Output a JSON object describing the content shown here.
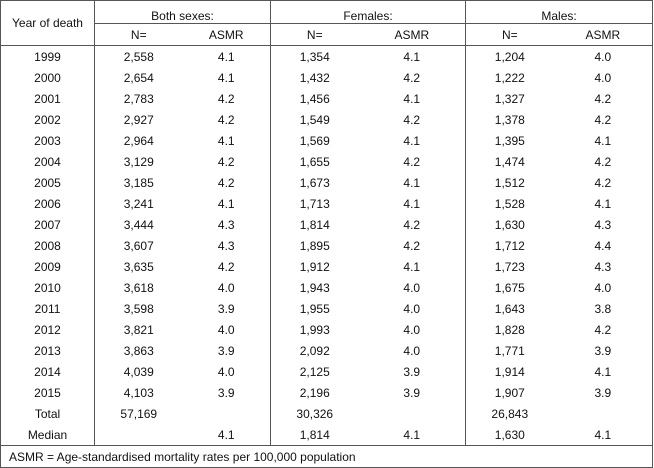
{
  "table": {
    "header": {
      "year_col": "Year of death",
      "groups": [
        "Both sexes:",
        "Females:",
        "Males:"
      ],
      "n_label": "N=",
      "asmr_label": "ASMR"
    },
    "rows": [
      {
        "year": "1999",
        "both_n": "2,558",
        "both_asmr": "4.1",
        "fem_n": "1,354",
        "fem_asmr": "4.1",
        "male_n": "1,204",
        "male_asmr": "4.0"
      },
      {
        "year": "2000",
        "both_n": "2,654",
        "both_asmr": "4.1",
        "fem_n": "1,432",
        "fem_asmr": "4.2",
        "male_n": "1,222",
        "male_asmr": "4.0"
      },
      {
        "year": "2001",
        "both_n": "2,783",
        "both_asmr": "4.2",
        "fem_n": "1,456",
        "fem_asmr": "4.1",
        "male_n": "1,327",
        "male_asmr": "4.2"
      },
      {
        "year": "2002",
        "both_n": "2,927",
        "both_asmr": "4.2",
        "fem_n": "1,549",
        "fem_asmr": "4.2",
        "male_n": "1,378",
        "male_asmr": "4.2"
      },
      {
        "year": "2003",
        "both_n": "2,964",
        "both_asmr": "4.1",
        "fem_n": "1,569",
        "fem_asmr": "4.1",
        "male_n": "1,395",
        "male_asmr": "4.1"
      },
      {
        "year": "2004",
        "both_n": "3,129",
        "both_asmr": "4.2",
        "fem_n": "1,655",
        "fem_asmr": "4.2",
        "male_n": "1,474",
        "male_asmr": "4.2"
      },
      {
        "year": "2005",
        "both_n": "3,185",
        "both_asmr": "4.2",
        "fem_n": "1,673",
        "fem_asmr": "4.1",
        "male_n": "1,512",
        "male_asmr": "4.2"
      },
      {
        "year": "2006",
        "both_n": "3,241",
        "both_asmr": "4.1",
        "fem_n": "1,713",
        "fem_asmr": "4.1",
        "male_n": "1,528",
        "male_asmr": "4.1"
      },
      {
        "year": "2007",
        "both_n": "3,444",
        "both_asmr": "4.3",
        "fem_n": "1,814",
        "fem_asmr": "4.2",
        "male_n": "1,630",
        "male_asmr": "4.3"
      },
      {
        "year": "2008",
        "both_n": "3,607",
        "both_asmr": "4.3",
        "fem_n": "1,895",
        "fem_asmr": "4.2",
        "male_n": "1,712",
        "male_asmr": "4.4"
      },
      {
        "year": "2009",
        "both_n": "3,635",
        "both_asmr": "4.2",
        "fem_n": "1,912",
        "fem_asmr": "4.1",
        "male_n": "1,723",
        "male_asmr": "4.3"
      },
      {
        "year": "2010",
        "both_n": "3,618",
        "both_asmr": "4.0",
        "fem_n": "1,943",
        "fem_asmr": "4.0",
        "male_n": "1,675",
        "male_asmr": "4.0"
      },
      {
        "year": "2011",
        "both_n": "3,598",
        "both_asmr": "3.9",
        "fem_n": "1,955",
        "fem_asmr": "4.0",
        "male_n": "1,643",
        "male_asmr": "3.8"
      },
      {
        "year": "2012",
        "both_n": "3,821",
        "both_asmr": "4.0",
        "fem_n": "1,993",
        "fem_asmr": "4.0",
        "male_n": "1,828",
        "male_asmr": "4.2"
      },
      {
        "year": "2013",
        "both_n": "3,863",
        "both_asmr": "3.9",
        "fem_n": "2,092",
        "fem_asmr": "4.0",
        "male_n": "1,771",
        "male_asmr": "3.9"
      },
      {
        "year": "2014",
        "both_n": "4,039",
        "both_asmr": "4.0",
        "fem_n": "2,125",
        "fem_asmr": "3.9",
        "male_n": "1,914",
        "male_asmr": "4.1"
      },
      {
        "year": "2015",
        "both_n": "4,103",
        "both_asmr": "3.9",
        "fem_n": "2,196",
        "fem_asmr": "3.9",
        "male_n": "1,907",
        "male_asmr": "3.9"
      },
      {
        "year": "Total",
        "both_n": "57,169",
        "both_asmr": "",
        "fem_n": "30,326",
        "fem_asmr": "",
        "male_n": "26,843",
        "male_asmr": ""
      },
      {
        "year": "Median",
        "both_n": "",
        "both_asmr": "4.1",
        "fem_n": "1,814",
        "fem_asmr": "4.1",
        "male_n": "1,630",
        "male_asmr": "4.1"
      }
    ],
    "footnote": "ASMR = Age-standardised mortality rates per 100,000 population"
  }
}
